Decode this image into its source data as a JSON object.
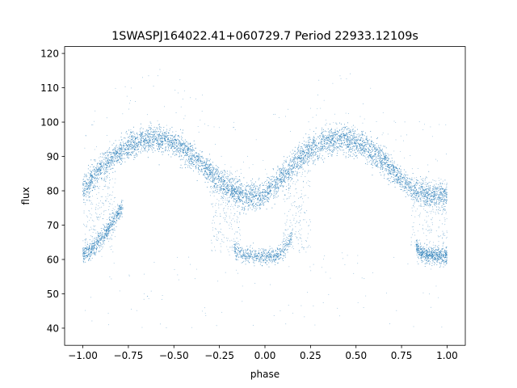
{
  "chart_data": {
    "type": "scatter",
    "title": "1SWASPJ164022.41+060729.7 Period 22933.12109s",
    "xlabel": "phase",
    "ylabel": "flux",
    "xlim": [
      -1.1,
      1.1
    ],
    "ylim": [
      35,
      122
    ],
    "xticks": [
      -1.0,
      -0.75,
      -0.5,
      -0.25,
      0.0,
      0.25,
      0.5,
      0.75,
      1.0
    ],
    "xtick_labels": [
      "−1.00",
      "−0.75",
      "−0.50",
      "−0.25",
      "0.00",
      "0.25",
      "0.50",
      "0.75",
      "1.00"
    ],
    "yticks": [
      40,
      50,
      60,
      70,
      80,
      90,
      100,
      110,
      120
    ],
    "ytick_labels": [
      "40",
      "50",
      "60",
      "70",
      "80",
      "90",
      "100",
      "110",
      "120"
    ],
    "grid": false,
    "legend": "none",
    "point_color": "#1f77b4",
    "series": [
      {
        "x": [
          -1.0,
          -0.95,
          -0.9,
          -0.85,
          -0.8,
          -0.75,
          -0.7,
          -0.65,
          -0.6,
          -0.55,
          -0.5,
          -0.45,
          -0.4,
          -0.35,
          -0.3,
          -0.25,
          -0.2,
          -0.15,
          -0.1,
          -0.05,
          0.0,
          0.05,
          0.1,
          0.15,
          0.2,
          0.25,
          0.3,
          0.35,
          0.4,
          0.45,
          0.5,
          0.55,
          0.6,
          0.65,
          0.7,
          0.75,
          0.8,
          0.85,
          0.9,
          0.95,
          1.0
        ],
        "y": [
          80,
          83.5,
          86.5,
          89,
          91,
          92.8,
          94,
          94.8,
          95,
          94.8,
          94,
          92.5,
          90.5,
          88,
          85.5,
          83,
          80.5,
          79,
          78.5,
          78.5,
          79,
          81.5,
          84.5,
          87.5,
          90,
          92,
          93.5,
          94.5,
          95,
          94.8,
          94,
          92.8,
          91,
          88.5,
          86,
          83.5,
          81,
          79.5,
          78.5,
          78.5,
          79
        ]
      },
      {
        "x": [
          -1.0,
          -0.97,
          -0.93,
          -0.9,
          -0.87,
          -0.85,
          -0.82,
          -0.8,
          -0.78,
          -0.17,
          -0.15,
          -0.12,
          -0.1,
          -0.05,
          0.0,
          0.05,
          0.08,
          0.1,
          0.12,
          0.15,
          0.83,
          0.85,
          0.88,
          0.9,
          0.95,
          1.0
        ],
        "y": [
          61.5,
          62,
          64,
          66,
          68,
          70,
          72,
          74,
          76,
          64,
          62,
          61.5,
          61,
          61,
          61,
          61,
          61.5,
          62.5,
          64,
          67,
          64,
          62,
          61.5,
          61,
          61,
          61
        ]
      }
    ]
  }
}
